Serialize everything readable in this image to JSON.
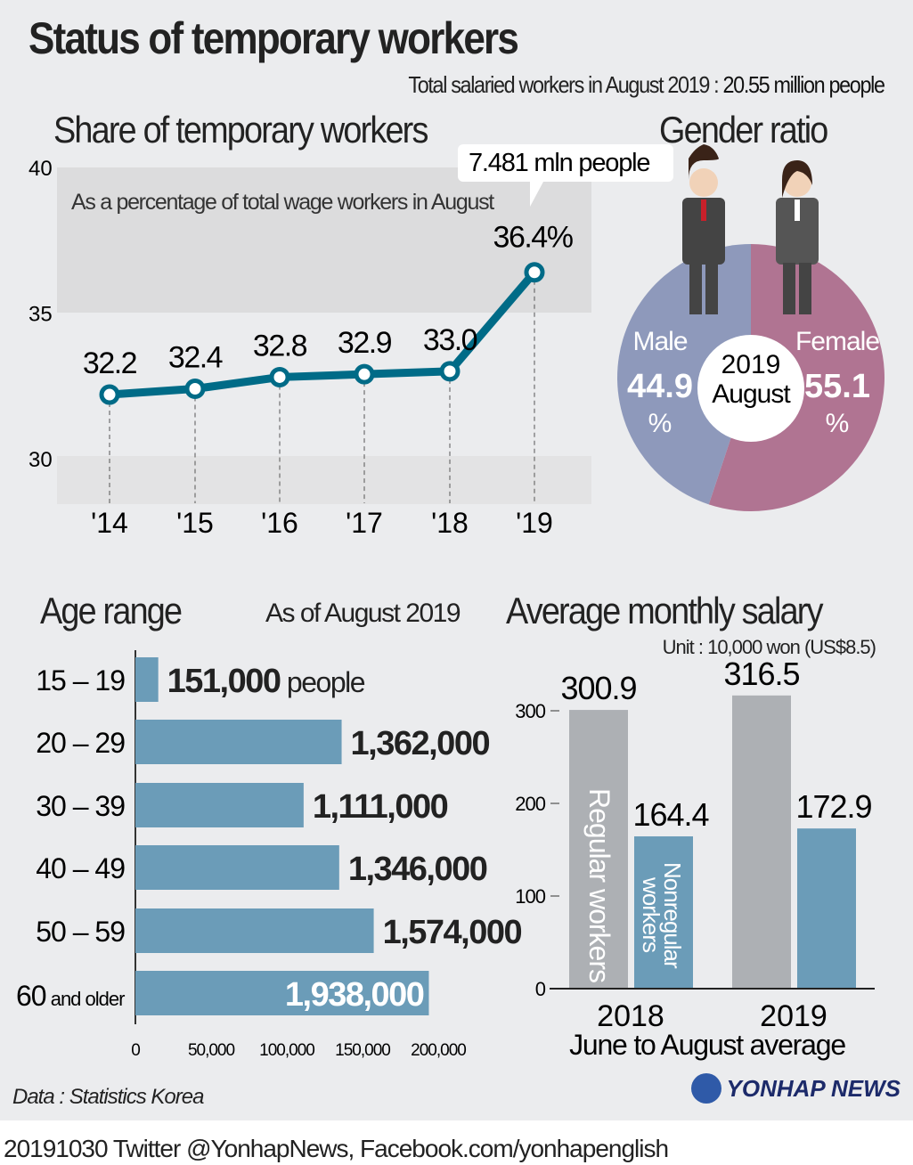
{
  "header": {
    "title": "Status of temporary workers",
    "subtitle_label": "Total salaried workers in August 2019 :",
    "subtitle_value": "20.55 million people"
  },
  "chart_data": [
    {
      "type": "line",
      "title": "Share of temporary workers",
      "subtitle": "As a percentage of total wage workers in August",
      "categories": [
        "'14",
        "'15",
        "'16",
        "'17",
        "'18",
        "'19"
      ],
      "values": [
        32.2,
        32.4,
        32.8,
        32.9,
        33.0,
        36.4
      ],
      "value_labels": [
        "32.2",
        "32.4",
        "32.8",
        "32.9",
        "33.0",
        "36.4%"
      ],
      "yticks": [
        "30",
        "35",
        "40"
      ],
      "ylim": [
        28.4,
        40
      ],
      "annotation": "7.481 mln people",
      "color": "#006b87"
    },
    {
      "type": "pie",
      "title": "Gender ratio",
      "center_label": [
        "2019",
        "August"
      ],
      "slices": [
        {
          "name": "Female",
          "value": 55.1,
          "label": "55.1",
          "unit": "%",
          "color": "#b07492"
        },
        {
          "name": "Male",
          "value": 44.9,
          "label": "44.9",
          "unit": "%",
          "color": "#8e99bb"
        }
      ]
    },
    {
      "type": "bar",
      "orientation": "horizontal",
      "title": "Age range",
      "subtitle": "As of August 2019",
      "categories": [
        "15 – 19",
        "20 – 29",
        "30 – 39",
        "40 – 49",
        "50 – 59",
        "60"
      ],
      "last_category_suffix": "and older",
      "values": [
        151000,
        1362000,
        1111000,
        1346000,
        1574000,
        1938000
      ],
      "value_labels": [
        "151,000",
        "1,362,000",
        "1,111,000",
        "1,346,000",
        "1,574,000",
        "1,938,000"
      ],
      "first_unit": "people",
      "xticks": [
        "0",
        "50,000",
        "100,000",
        "150,000",
        "200,000"
      ],
      "xlim": [
        0,
        2000000
      ],
      "color": "#6b9cb8"
    },
    {
      "type": "bar",
      "title": "Average monthly salary",
      "unit": "Unit : 10,000 won (US$8.5)",
      "categories": [
        "2018",
        "2019"
      ],
      "xlabel": "June to August average",
      "series": [
        {
          "name": "Regular workers",
          "values": [
            300.9,
            316.5
          ],
          "color": "#adb0b4"
        },
        {
          "name": "Nonregular workers",
          "name_lines": [
            "Nonregular",
            "workers"
          ],
          "values": [
            164.4,
            172.9
          ],
          "color": "#6b9cb8"
        }
      ],
      "value_labels": [
        [
          "300.9",
          "316.5"
        ],
        [
          "164.4",
          "172.9"
        ]
      ],
      "yticks": [
        "0",
        "100",
        "200",
        "300"
      ],
      "ylim": [
        0,
        300
      ]
    }
  ],
  "source": "Data : Statistics Korea",
  "logo": "YONHAP NEWS",
  "footer": "20191030  Twitter @YonhapNews,  Facebook.com/yonhapenglish"
}
